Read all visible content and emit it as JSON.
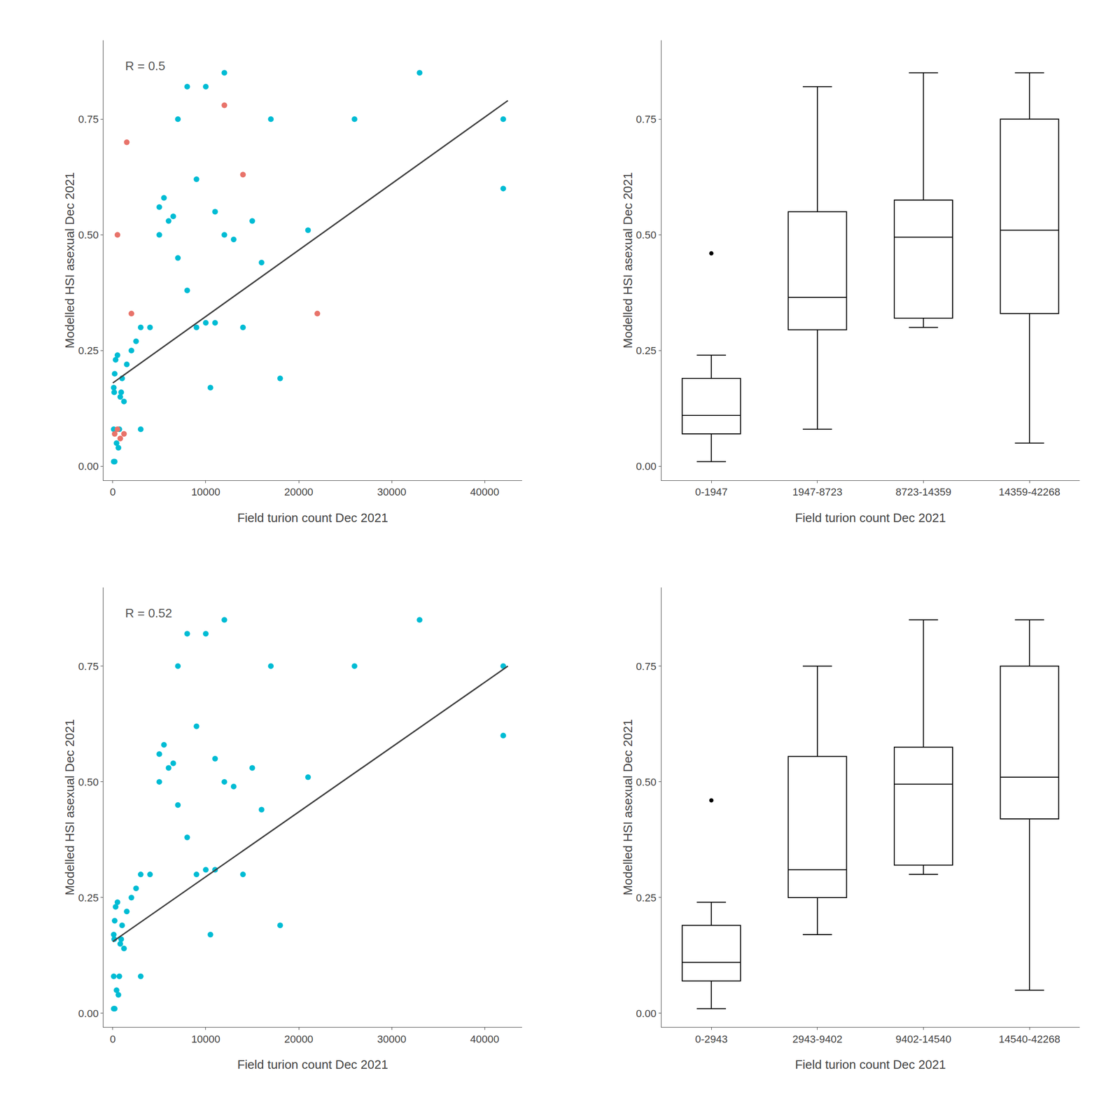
{
  "chart_data": [
    {
      "type": "scatter",
      "xlabel": "Field turion count Dec 2021",
      "ylabel": "Modelled HSI asexual Dec 2021",
      "annotations": [
        {
          "text": "R = 0.5",
          "color": "#555555"
        }
      ],
      "series": [
        {
          "type": "scatter",
          "marker": "circle",
          "color": "#00BCD4",
          "x": [
            100,
            150,
            200,
            300,
            400,
            500,
            600,
            700,
            800,
            900,
            1000,
            1200,
            1500,
            2000,
            2500,
            3000,
            4000,
            5000,
            5500,
            6000,
            6500,
            7000,
            8000,
            9000,
            10000,
            10500,
            11000,
            12000,
            13000,
            14000,
            15000,
            16000,
            17000,
            18000,
            21000,
            26000,
            33000,
            42000,
            42000,
            100,
            100,
            200,
            3000,
            7000,
            8000,
            9000,
            10000,
            11000,
            12000,
            5000
          ],
          "values": [
            0.17,
            0.16,
            0.2,
            0.23,
            0.05,
            0.24,
            0.04,
            0.08,
            0.15,
            0.16,
            0.19,
            0.14,
            0.22,
            0.25,
            0.27,
            0.3,
            0.3,
            0.56,
            0.58,
            0.53,
            0.54,
            0.45,
            0.38,
            0.3,
            0.31,
            0.17,
            0.31,
            0.5,
            0.49,
            0.3,
            0.53,
            0.44,
            0.75,
            0.19,
            0.51,
            0.75,
            0.85,
            0.6,
            0.75,
            0.08,
            0.01,
            0.01,
            0.08,
            0.75,
            0.82,
            0.62,
            0.82,
            0.55,
            0.85,
            0.5
          ]
        },
        {
          "type": "scatter",
          "marker": "circle",
          "color": "#E8736A",
          "x": [
            200,
            500,
            800,
            1200,
            2000,
            500,
            12000,
            14000,
            22000,
            1500
          ],
          "values": [
            0.07,
            0.08,
            0.06,
            0.07,
            0.33,
            0.5,
            0.78,
            0.63,
            0.33,
            0.7
          ]
        },
        {
          "type": "line",
          "line_style": "solid",
          "color": "#404040",
          "x": [
            0,
            42500
          ],
          "values": [
            0.18,
            0.79
          ]
        }
      ],
      "xlim": [
        -1000,
        44000
      ],
      "xticks": [
        0,
        10000,
        20000,
        30000,
        40000
      ],
      "ylim": [
        -0.03,
        0.92
      ],
      "yticks": [
        {
          "value": 0.0,
          "label": "0.00"
        },
        {
          "value": 0.25,
          "label": "0.25"
        },
        {
          "value": 0.5,
          "label": "0.50"
        },
        {
          "value": 0.75,
          "label": "0.75"
        }
      ],
      "grid": false
    },
    {
      "type": "box",
      "xlabel": "Field turion count Dec 2021",
      "ylabel": "Modelled HSI asexual Dec 2021",
      "color": "#000000",
      "categories": [
        "0-1947",
        "1947-8723",
        "8723-14359",
        "14359-42268"
      ],
      "values": [
        [
          0.01,
          0.01,
          0.04,
          0.05,
          0.06,
          0.07,
          0.07,
          0.08,
          0.08,
          0.08,
          0.08,
          0.14,
          0.15,
          0.16,
          0.16,
          0.17,
          0.19,
          0.2,
          0.22,
          0.23,
          0.24,
          0.46
        ],
        [
          0.08,
          0.17,
          0.25,
          0.27,
          0.29,
          0.3,
          0.3,
          0.31,
          0.31,
          0.35,
          0.38,
          0.45,
          0.5,
          0.53,
          0.54,
          0.56,
          0.58,
          0.62,
          0.75,
          0.82
        ],
        [
          0.3,
          0.3,
          0.31,
          0.33,
          0.44,
          0.49,
          0.5,
          0.51,
          0.53,
          0.62,
          0.82,
          0.85
        ],
        [
          0.05,
          0.33,
          0.33,
          0.5,
          0.51,
          0.6,
          0.75,
          0.75,
          0.85
        ]
      ],
      "ylim": [
        -0.03,
        0.92
      ],
      "yticks": [
        {
          "value": 0.0,
          "label": "0.00"
        },
        {
          "value": 0.25,
          "label": "0.25"
        },
        {
          "value": 0.5,
          "label": "0.50"
        },
        {
          "value": 0.75,
          "label": "0.75"
        }
      ],
      "grid": false
    },
    {
      "type": "scatter",
      "xlabel": "Field turion count Dec 2021",
      "ylabel": "Modelled HSI asexual Dec 2021",
      "annotations": [
        {
          "text": "R = 0.52",
          "color": "#555555"
        }
      ],
      "series": [
        {
          "type": "scatter",
          "marker": "circle",
          "color": "#00BCD4",
          "x": [
            100,
            150,
            200,
            300,
            400,
            500,
            600,
            700,
            800,
            900,
            1000,
            1200,
            1500,
            2000,
            2500,
            3000,
            4000,
            5000,
            5500,
            6000,
            6500,
            7000,
            8000,
            9000,
            10000,
            10500,
            11000,
            12000,
            13000,
            14000,
            15000,
            16000,
            17000,
            18000,
            21000,
            26000,
            33000,
            42000,
            42000,
            100,
            100,
            200,
            3000,
            7000,
            8000,
            9000,
            10000,
            11000,
            12000,
            5000
          ],
          "values": [
            0.17,
            0.16,
            0.2,
            0.23,
            0.05,
            0.24,
            0.04,
            0.08,
            0.15,
            0.16,
            0.19,
            0.14,
            0.22,
            0.25,
            0.27,
            0.3,
            0.3,
            0.56,
            0.58,
            0.53,
            0.54,
            0.45,
            0.38,
            0.3,
            0.31,
            0.17,
            0.31,
            0.5,
            0.49,
            0.3,
            0.53,
            0.44,
            0.75,
            0.19,
            0.51,
            0.75,
            0.85,
            0.6,
            0.75,
            0.08,
            0.01,
            0.01,
            0.08,
            0.75,
            0.82,
            0.62,
            0.82,
            0.55,
            0.85,
            0.5
          ]
        },
        {
          "type": "line",
          "line_style": "solid",
          "color": "#404040",
          "x": [
            0,
            42500
          ],
          "values": [
            0.155,
            0.75
          ]
        }
      ],
      "xlim": [
        -1000,
        44000
      ],
      "xticks": [
        0,
        10000,
        20000,
        30000,
        40000
      ],
      "ylim": [
        -0.03,
        0.92
      ],
      "yticks": [
        {
          "value": 0.0,
          "label": "0.00"
        },
        {
          "value": 0.25,
          "label": "0.25"
        },
        {
          "value": 0.5,
          "label": "0.50"
        },
        {
          "value": 0.75,
          "label": "0.75"
        }
      ],
      "grid": false
    },
    {
      "type": "box",
      "xlabel": "Field turion count Dec 2021",
      "ylabel": "Modelled HSI asexual Dec 2021",
      "color": "#000000",
      "categories": [
        "0-2943",
        "2943-9402",
        "9402-14540",
        "14540-42268"
      ],
      "values": [
        [
          0.01,
          0.01,
          0.04,
          0.05,
          0.06,
          0.07,
          0.07,
          0.08,
          0.08,
          0.08,
          0.08,
          0.14,
          0.15,
          0.16,
          0.16,
          0.17,
          0.19,
          0.2,
          0.22,
          0.23,
          0.24,
          0.46
        ],
        [
          0.17,
          0.19,
          0.22,
          0.24,
          0.25,
          0.25,
          0.27,
          0.3,
          0.3,
          0.31,
          0.38,
          0.45,
          0.53,
          0.54,
          0.56,
          0.58,
          0.74,
          0.75,
          0.75
        ],
        [
          0.3,
          0.3,
          0.31,
          0.33,
          0.44,
          0.49,
          0.5,
          0.51,
          0.53,
          0.62,
          0.82,
          0.85
        ],
        [
          0.05,
          0.33,
          0.45,
          0.5,
          0.51,
          0.6,
          0.75,
          0.75,
          0.85
        ]
      ],
      "ylim": [
        -0.03,
        0.92
      ],
      "yticks": [
        {
          "value": 0.0,
          "label": "0.00"
        },
        {
          "value": 0.25,
          "label": "0.25"
        },
        {
          "value": 0.5,
          "label": "0.50"
        },
        {
          "value": 0.75,
          "label": "0.75"
        }
      ],
      "grid": false
    }
  ]
}
